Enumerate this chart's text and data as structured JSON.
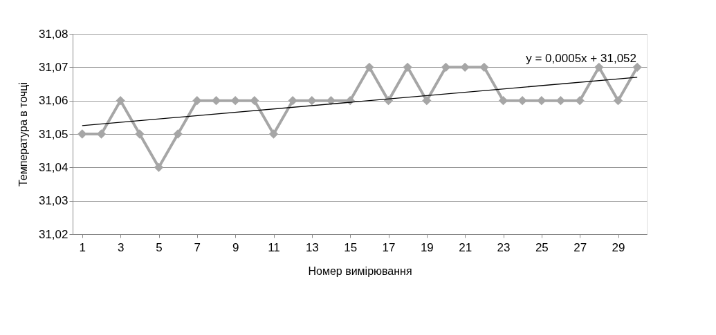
{
  "chart_data": {
    "type": "line",
    "xlabel": "Номер вимірювання",
    "ylabel": "Температура в точці",
    "x": [
      1,
      2,
      3,
      4,
      5,
      6,
      7,
      8,
      9,
      10,
      11,
      12,
      13,
      14,
      15,
      16,
      17,
      18,
      19,
      20,
      21,
      22,
      23,
      24,
      25,
      26,
      27,
      28,
      29,
      30
    ],
    "series": [
      {
        "color": "#a6a6a6",
        "marker": "diamond",
        "values": [
          31.05,
          31.05,
          31.06,
          31.05,
          31.04,
          31.05,
          31.06,
          31.06,
          31.06,
          31.06,
          31.05,
          31.06,
          31.06,
          31.06,
          31.06,
          31.07,
          31.06,
          31.07,
          31.06,
          31.07,
          31.07,
          31.07,
          31.06,
          31.06,
          31.06,
          31.06,
          31.06,
          31.07,
          31.06,
          31.07
        ]
      },
      {
        "color": "#000000",
        "marker": "none",
        "x": [
          1,
          30
        ],
        "values": [
          31.0525,
          31.067
        ]
      }
    ],
    "xlim": [
      0.5,
      30.5
    ],
    "xticks": [
      1,
      3,
      5,
      7,
      9,
      11,
      13,
      15,
      17,
      19,
      21,
      23,
      25,
      27,
      29
    ],
    "ylim": [
      31.02,
      31.08
    ],
    "yticks": [
      {
        "value": 31.02,
        "label": "31,02"
      },
      {
        "value": 31.03,
        "label": "31,03"
      },
      {
        "value": 31.04,
        "label": "31,04"
      },
      {
        "value": 31.05,
        "label": "31,05"
      },
      {
        "value": 31.06,
        "label": "31,06"
      },
      {
        "value": 31.07,
        "label": "31,07"
      },
      {
        "value": 31.08,
        "label": "31,08"
      }
    ],
    "grid": "y",
    "annotations": [
      "y = 0,0005x + 31,052"
    ]
  }
}
